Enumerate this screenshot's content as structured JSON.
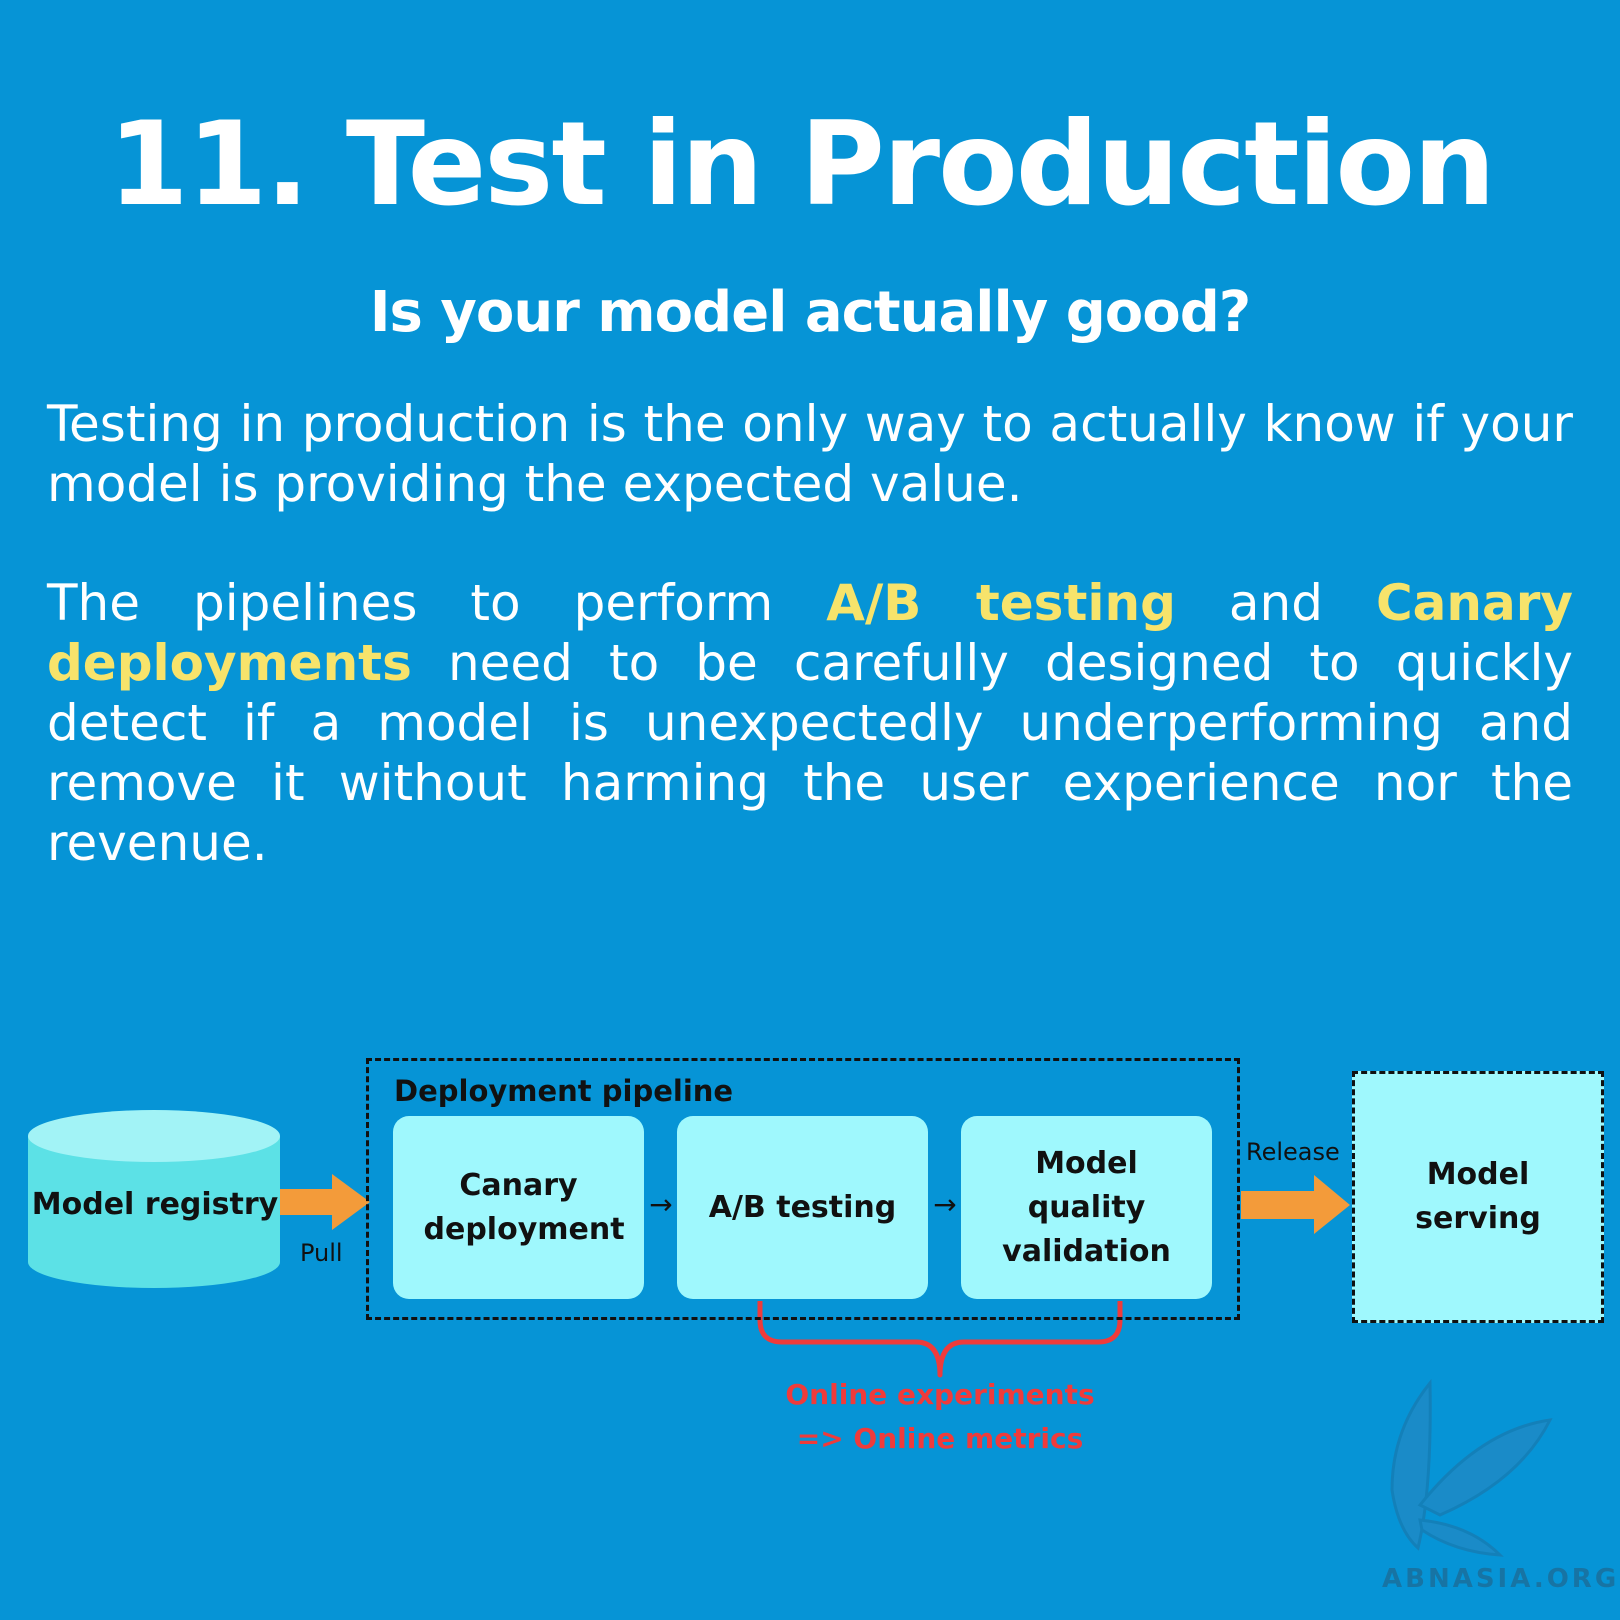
{
  "title": "11. Test in Production",
  "subtitle": "Is your model actually good?",
  "paragraph1": "Testing in production is the only way to actually know if your model is providing the expected value.",
  "paragraph2": {
    "part1": "The pipelines to perform ",
    "highlight1": "A/B testing",
    "part2": " and ",
    "highlight2": "Canary deployments",
    "part3": " need to be carefully designed to quickly detect if a model is unexpectedly underperforming and remove it without harming the user experience nor the revenue."
  },
  "diagram": {
    "registry_label": "Model registry",
    "pull_label": "Pull",
    "pipeline_label": "Deployment  pipeline",
    "stages": [
      "Canary deployment",
      "A/B testing",
      "Model quality validation"
    ],
    "stage_arrow": "→",
    "release_label": "Release",
    "serving_label": "Model serving",
    "online_line1": "Online experiments",
    "online_line2": "=> Online metrics"
  },
  "logo": {
    "text": "ABNASIA.ORG",
    "icon": "butterfly-icon"
  },
  "colors": {
    "background": "#0694d6",
    "highlight": "#f7e36b",
    "box_fill": "#9ff8fd",
    "cylinder_fill": "#5ce1e6",
    "arrow": "#f39b3a",
    "brace": "#ef3b3b"
  }
}
